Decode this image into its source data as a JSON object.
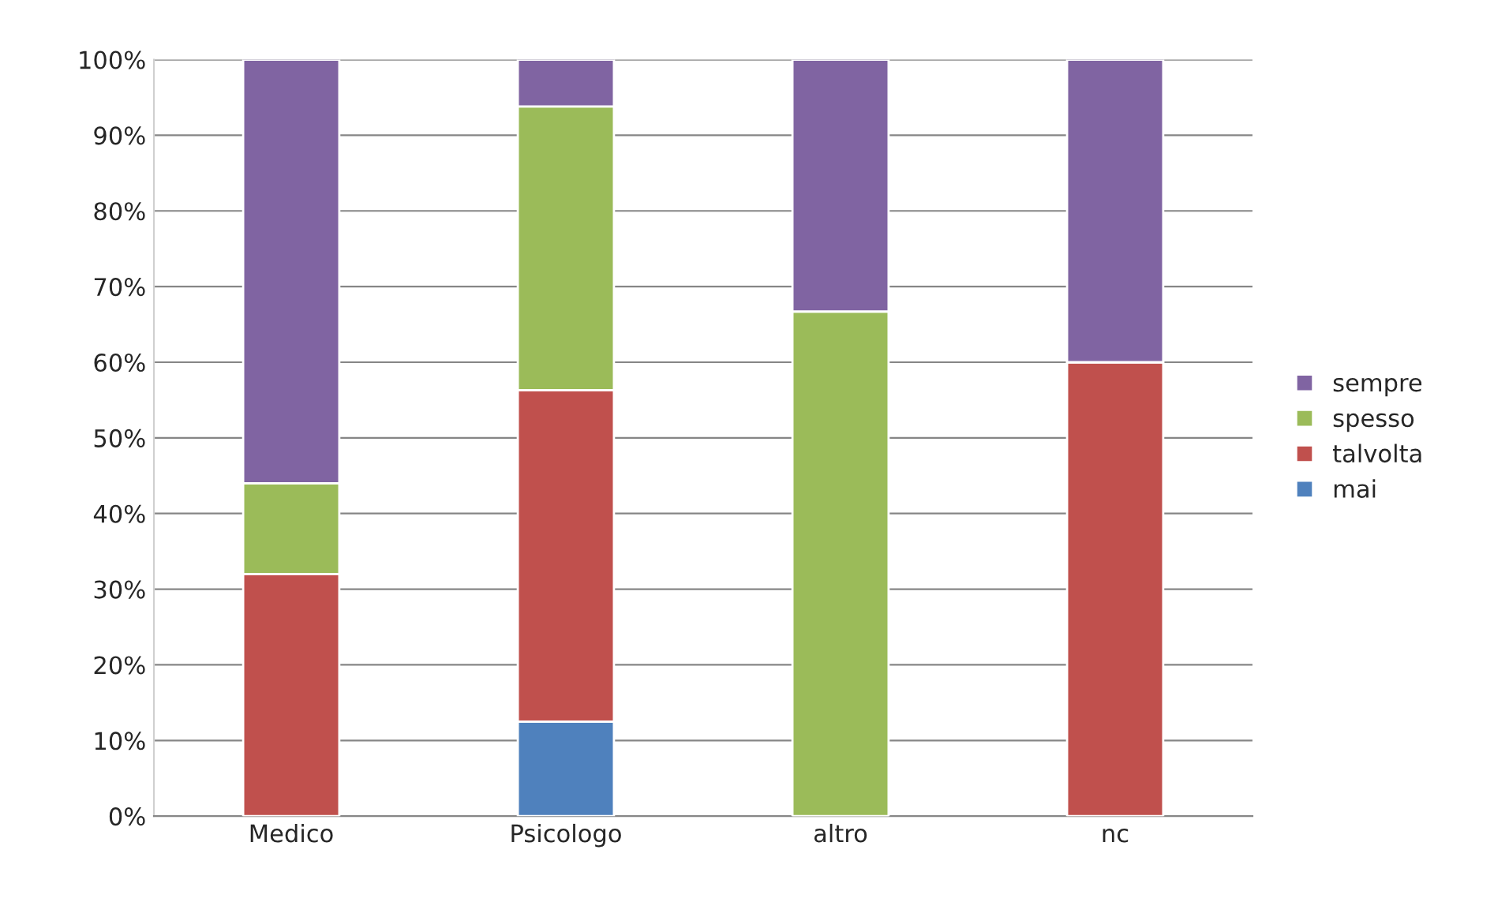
{
  "chart_data": {
    "type": "bar",
    "stacked": true,
    "categories": [
      "Medico",
      "Psicologo",
      "altro",
      "nc"
    ],
    "series": [
      {
        "name": "mai",
        "color": "#4f81bd",
        "values": [
          0,
          12.5,
          0,
          0
        ]
      },
      {
        "name": "talvolta",
        "color": "#c0504d",
        "values": [
          32,
          43.8,
          0,
          60
        ]
      },
      {
        "name": "spesso",
        "color": "#9bbb59",
        "values": [
          12,
          37.5,
          66.7,
          0
        ]
      },
      {
        "name": "sempre",
        "color": "#8064a2",
        "values": [
          56,
          6.2,
          33.3,
          40
        ]
      }
    ],
    "ylim": [
      0,
      100
    ],
    "yticks": [
      {
        "value": 0,
        "label": "0%"
      },
      {
        "value": 10,
        "label": "10%"
      },
      {
        "value": 20,
        "label": "20%"
      },
      {
        "value": 30,
        "label": "30%"
      },
      {
        "value": 40,
        "label": "40%"
      },
      {
        "value": 50,
        "label": "50%"
      },
      {
        "value": 60,
        "label": "60%"
      },
      {
        "value": 70,
        "label": "70%"
      },
      {
        "value": 80,
        "label": "80%"
      },
      {
        "value": 90,
        "label": "90%"
      },
      {
        "value": 100,
        "label": "100%"
      }
    ],
    "grid": "y",
    "legend": "right"
  }
}
